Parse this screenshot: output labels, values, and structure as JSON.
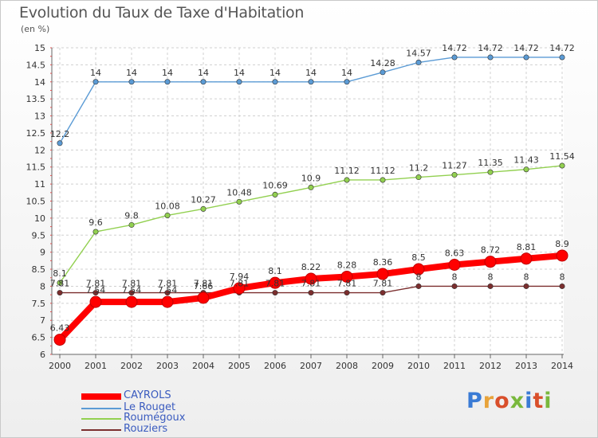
{
  "title": "Evolution du Taux de Taxe d'Habitation",
  "subtitle": "(en %)",
  "logo": {
    "text": "Proxiti",
    "letters": [
      "P",
      "r",
      "o",
      "x",
      "i",
      "t",
      "i"
    ],
    "colors": [
      "#3a7bd5",
      "#e8a33a",
      "#d94f2b",
      "#79b83c",
      "#3a7bd5",
      "#d94f2b",
      "#79b83c"
    ]
  },
  "chart_data": {
    "type": "line",
    "title": "Evolution du Taux de Taxe d'Habitation",
    "xlabel": "",
    "ylabel": "(en %)",
    "x": [
      "2000",
      "2001",
      "2002",
      "2003",
      "2004",
      "2005",
      "2006",
      "2007",
      "2008",
      "2009",
      "2010",
      "2011",
      "2012",
      "2013",
      "2014"
    ],
    "ylim": [
      6,
      15
    ],
    "yticks": [
      "6",
      "6.5",
      "7",
      "7.5",
      "8",
      "8.5",
      "9",
      "9.5",
      "10",
      "10.5",
      "11",
      "11.5",
      "12",
      "12.5",
      "13",
      "13.5",
      "14",
      "14.5",
      "15"
    ],
    "grid": true,
    "legend_position": "bottom-left",
    "series": [
      {
        "name": "Le Rouget",
        "color": "#5b9bd5",
        "values": [
          12.2,
          14,
          14,
          14,
          14,
          14,
          14,
          14,
          14,
          14.28,
          14.57,
          14.72,
          14.72,
          14.72,
          14.72
        ],
        "labels": [
          "12.2",
          "14",
          "14",
          "14",
          "14",
          "14",
          "14",
          "14",
          "14",
          "14.28",
          "14.57",
          "14.72",
          "14.72",
          "14.72",
          "14.72"
        ]
      },
      {
        "name": "Roumégoux",
        "color": "#92d050",
        "values": [
          8.1,
          9.6,
          9.8,
          10.08,
          10.27,
          10.48,
          10.69,
          10.9,
          11.12,
          11.12,
          11.2,
          11.27,
          11.35,
          11.43,
          11.54
        ],
        "labels": [
          "8.1",
          "9.6",
          "9.8",
          "10.08",
          "10.27",
          "10.48",
          "10.69",
          "10.9",
          "11.12",
          "11.12",
          "11.2",
          "11.27",
          "11.35",
          "11.43",
          "11.54"
        ]
      },
      {
        "name": "Rouziers",
        "color": "#7b2e2e",
        "values": [
          7.81,
          7.81,
          7.81,
          7.81,
          7.81,
          7.81,
          7.81,
          7.81,
          7.81,
          7.81,
          8,
          8,
          8,
          8,
          8
        ],
        "labels": [
          "7.81",
          "7.81",
          "7.81",
          "7.81",
          "7.81",
          "7.81",
          "7.81",
          "7.81",
          "7.81",
          "7.81",
          "8",
          "8",
          "8",
          "8",
          "8"
        ]
      },
      {
        "name": "CAYROLS",
        "color": "#ff0000",
        "values": [
          6.43,
          7.54,
          7.54,
          7.54,
          7.66,
          7.94,
          8.1,
          8.22,
          8.28,
          8.36,
          8.5,
          8.63,
          8.72,
          8.81,
          8.9
        ],
        "labels": [
          "6.43",
          "7.54",
          "7.54",
          "7.54",
          "7.66",
          "7.94",
          "8.1",
          "8.22",
          "8.28",
          "8.36",
          "8.5",
          "8.63",
          "8.72",
          "8.81",
          "8.9"
        ]
      }
    ],
    "legend": [
      "CAYROLS",
      "Le Rouget",
      "Roumégoux",
      "Rouziers"
    ]
  }
}
